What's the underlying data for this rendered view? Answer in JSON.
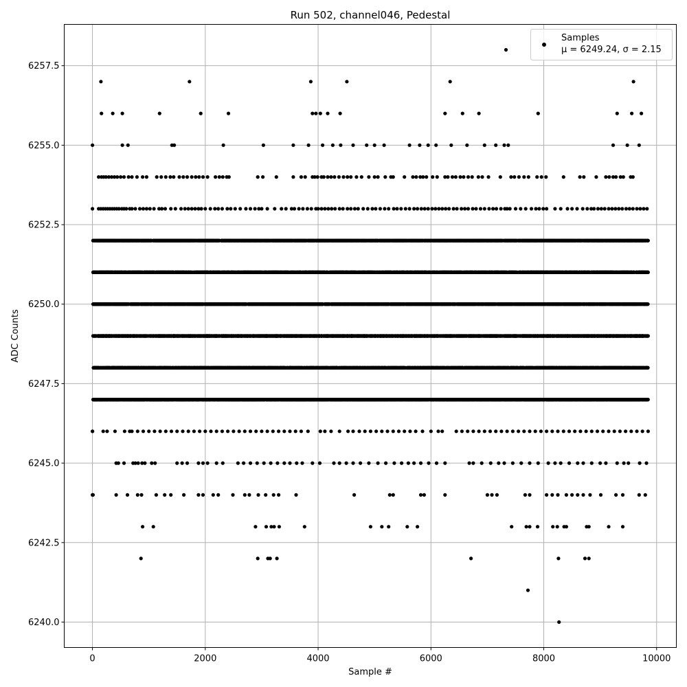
{
  "chart_data": {
    "type": "scatter",
    "title": "Run 502, channel046, Pedestal",
    "xlabel": "Sample #",
    "ylabel": "ADC Counts",
    "xlim": [
      -500,
      10350
    ],
    "ylim": [
      6239.2,
      6258.8
    ],
    "xticks": [
      0,
      2000,
      4000,
      6000,
      8000,
      10000
    ],
    "yticks": [
      6240.0,
      6242.5,
      6245.0,
      6247.5,
      6250.0,
      6252.5,
      6255.0,
      6257.5
    ],
    "xtick_labels": [
      "0",
      "2000",
      "4000",
      "6000",
      "8000",
      "10000"
    ],
    "ytick_labels": [
      "6240.0",
      "6242.5",
      "6245.0",
      "6247.5",
      "6250.0",
      "6252.5",
      "6255.0",
      "6257.5"
    ],
    "grid": true,
    "legend": {
      "placement": "top-right",
      "line1": "Samples",
      "line2": "μ = 6249.24, σ = 2.15"
    },
    "marker_color": "#000000",
    "series": [
      {
        "name": "Samples",
        "points": [
          [
            0,
            6244
          ],
          [
            0,
            6246
          ],
          [
            0,
            6255
          ],
          [
            150,
            6257
          ],
          [
            160,
            6256
          ],
          [
            360,
            6256
          ],
          [
            530,
            6256
          ],
          [
            530,
            6255
          ],
          [
            630,
            6255
          ],
          [
            1190,
            6256
          ],
          [
            1720,
            6257
          ],
          [
            1920,
            6256
          ],
          [
            2410,
            6256
          ],
          [
            2320,
            6255
          ],
          [
            3030,
            6255
          ],
          [
            1410,
            6255
          ],
          [
            1450,
            6255
          ],
          [
            3870,
            6257
          ],
          [
            3900,
            6256
          ],
          [
            3960,
            6256
          ],
          [
            4040,
            6256
          ],
          [
            4170,
            6256
          ],
          [
            4390,
            6256
          ],
          [
            4510,
            6257
          ],
          [
            3560,
            6255
          ],
          [
            3830,
            6255
          ],
          [
            4080,
            6255
          ],
          [
            4260,
            6255
          ],
          [
            4400,
            6255
          ],
          [
            4620,
            6255
          ],
          [
            4860,
            6255
          ],
          [
            5000,
            6255
          ],
          [
            5170,
            6255
          ],
          [
            5620,
            6255
          ],
          [
            5800,
            6255
          ],
          [
            5950,
            6255
          ],
          [
            6090,
            6255
          ],
          [
            6250,
            6256
          ],
          [
            6340,
            6257
          ],
          [
            6360,
            6255
          ],
          [
            6560,
            6256
          ],
          [
            6640,
            6255
          ],
          [
            6850,
            6256
          ],
          [
            6950,
            6255
          ],
          [
            7150,
            6255
          ],
          [
            7300,
            6255
          ],
          [
            7370,
            6255
          ],
          [
            7330,
            6258
          ],
          [
            7900,
            6256
          ],
          [
            9230,
            6255
          ],
          [
            9300,
            6256
          ],
          [
            9480,
            6255
          ],
          [
            9560,
            6256
          ],
          [
            9590,
            6257
          ],
          [
            9690,
            6255
          ],
          [
            9730,
            6256
          ],
          [
            860,
            6242
          ],
          [
            2930,
            6242
          ],
          [
            3110,
            6242
          ],
          [
            3150,
            6242
          ],
          [
            3270,
            6242
          ],
          [
            6710,
            6242
          ],
          [
            8260,
            6242
          ],
          [
            8730,
            6242
          ],
          [
            8800,
            6242
          ],
          [
            7720,
            6241
          ],
          [
            8270,
            6240
          ],
          [
            890,
            6243
          ],
          [
            1080,
            6243
          ],
          [
            2890,
            6243
          ],
          [
            3080,
            6243
          ],
          [
            3170,
            6243
          ],
          [
            3220,
            6243
          ],
          [
            3310,
            6243
          ],
          [
            3760,
            6243
          ],
          [
            4930,
            6243
          ],
          [
            5130,
            6243
          ],
          [
            5250,
            6243
          ],
          [
            5580,
            6243
          ],
          [
            5760,
            6243
          ],
          [
            7430,
            6243
          ],
          [
            7690,
            6243
          ],
          [
            7750,
            6243
          ],
          [
            7890,
            6243
          ],
          [
            8160,
            6243
          ],
          [
            8240,
            6243
          ],
          [
            8360,
            6243
          ],
          [
            8400,
            6243
          ],
          [
            8760,
            6243
          ],
          [
            8800,
            6243
          ],
          [
            9150,
            6243
          ],
          [
            9400,
            6243
          ],
          [
            10,
            6244
          ],
          [
            420,
            6244
          ],
          [
            620,
            6244
          ],
          [
            800,
            6244
          ],
          [
            870,
            6244
          ],
          [
            1130,
            6244
          ],
          [
            1280,
            6244
          ],
          [
            1390,
            6244
          ],
          [
            1620,
            6244
          ],
          [
            1880,
            6244
          ],
          [
            1960,
            6244
          ],
          [
            2140,
            6244
          ],
          [
            2230,
            6244
          ],
          [
            2490,
            6244
          ],
          [
            2700,
            6244
          ],
          [
            2780,
            6244
          ],
          [
            2940,
            6244
          ],
          [
            3070,
            6244
          ],
          [
            3210,
            6244
          ],
          [
            3300,
            6244
          ],
          [
            3610,
            6244
          ],
          [
            4640,
            6244
          ],
          [
            5270,
            6244
          ],
          [
            5330,
            6244
          ],
          [
            5820,
            6244
          ],
          [
            5880,
            6244
          ],
          [
            6250,
            6244
          ],
          [
            7000,
            6244
          ],
          [
            7080,
            6244
          ],
          [
            7170,
            6244
          ],
          [
            7670,
            6244
          ],
          [
            7750,
            6244
          ],
          [
            8050,
            6244
          ],
          [
            8150,
            6244
          ],
          [
            8250,
            6244
          ],
          [
            8400,
            6244
          ],
          [
            8500,
            6244
          ],
          [
            8600,
            6244
          ],
          [
            8700,
            6244
          ],
          [
            8820,
            6244
          ],
          [
            9010,
            6244
          ],
          [
            9280,
            6244
          ],
          [
            9400,
            6244
          ],
          [
            9690,
            6244
          ],
          [
            9800,
            6244
          ]
        ],
        "bands": [
          {
            "y": 6245,
            "x": [
              420,
              460,
              560,
              720,
              760,
              810,
              880,
              930,
              1050,
              1110,
              1500,
              1590,
              1680,
              1880,
              1960,
              2040,
              2200,
              2310,
              2580,
              2680,
              2800,
              2920,
              3040,
              3160,
              3280,
              3400,
              3500,
              3620,
              3720,
              3900,
              4030,
              4280,
              4380,
              4500,
              4620,
              4750,
              4900,
              5060,
              5200,
              5350,
              5480,
              5600,
              5700,
              5820,
              5960,
              6100,
              6250,
              6680,
              6750,
              6900,
              7060,
              7200,
              7300,
              7450,
              7600,
              7750,
              7900,
              8080,
              8200,
              8300,
              8450,
              8600,
              8700,
              8850,
              9000,
              9100,
              9300,
              9420,
              9500,
              9700,
              9820
            ]
          },
          {
            "y": 6246,
            "x": [
              0,
              190,
              260,
              400,
              570,
              660,
              700,
              800,
              900,
              1000,
              1100,
              1200,
              1300,
              1400,
              1500,
              1600,
              1700,
              1800,
              1900,
              2000,
              2100,
              2200,
              2300,
              2400,
              2500,
              2600,
              2700,
              2800,
              2900,
              3000,
              3100,
              3200,
              3300,
              3400,
              3500,
              3600,
              3700,
              3820,
              4040,
              4120,
              4230,
              4380,
              4530,
              4620,
              4730,
              4830,
              4930,
              5030,
              5130,
              5230,
              5330,
              5430,
              5530,
              5630,
              5730,
              5850,
              6000,
              6130,
              6200,
              6450,
              6550,
              6650,
              6750,
              6850,
              6950,
              7050,
              7150,
              7250,
              7350,
              7450,
              7550,
              7650,
              7750,
              7850,
              7950,
              8050,
              8150,
              8250,
              8350,
              8450,
              8550,
              8650,
              8750,
              8850,
              8950,
              9050,
              9150,
              9250,
              9350,
              9450,
              9550,
              9650,
              9750,
              9850
            ]
          },
          {
            "y": 6247,
            "x": 3000
          },
          {
            "y": 6248,
            "x": 3000
          },
          {
            "y": 6249,
            "x": 3000
          },
          {
            "y": 6250,
            "x": 3000
          },
          {
            "y": 6251,
            "x": 3000
          },
          {
            "y": 6252,
            "x": 3000
          },
          {
            "y": 6253,
            "x": [
              0,
              110,
              150,
              190,
              230,
              270,
              310,
              350,
              390,
              430,
              470,
              520,
              560,
              600,
              660,
              700,
              760,
              840,
              900,
              960,
              1020,
              1090,
              1180,
              1230,
              1290,
              1390,
              1470,
              1570,
              1640,
              1700,
              1760,
              1820,
              1880,
              1930,
              2000,
              2090,
              2170,
              2230,
              2300,
              2390,
              2450,
              2530,
              2620,
              2720,
              2800,
              2880,
              2950,
              3000,
              3100,
              3230,
              3350,
              3430,
              3530,
              3580,
              3660,
              3730,
              3810,
              3880,
              3960,
              4000,
              4060,
              4120,
              4180,
              4240,
              4300,
              4380,
              4440,
              4520,
              4580,
              4650,
              4710,
              4800,
              4880,
              4960,
              5020,
              5100,
              5180,
              5250,
              5340,
              5400,
              5470,
              5550,
              5620,
              5700,
              5760,
              5830,
              5890,
              5950,
              6020,
              6080,
              6140,
              6200,
              6260,
              6320,
              6400,
              6460,
              6540,
              6600,
              6660,
              6740,
              6800,
              6880,
              6950,
              7030,
              7100,
              7160,
              7240,
              7310,
              7350,
              7400,
              7500,
              7590,
              7680,
              7780,
              7860,
              7920,
              7990,
              8050,
              8200,
              8300,
              8420,
              8500,
              8590,
              8690,
              8770,
              8840,
              8890,
              8960,
              9020,
              9080,
              9150,
              9210,
              9270,
              9330,
              9390,
              9460,
              9520,
              9580,
              9650,
              9710,
              9770,
              9830
            ]
          },
          {
            "y": 6254,
            "x": [
              110,
              160,
              200,
              240,
              290,
              340,
              390,
              440,
              500,
              560,
              640,
              700,
              790,
              890,
              960,
              1140,
              1220,
              1300,
              1380,
              1440,
              1540,
              1610,
              1680,
              1760,
              1830,
              1890,
              1960,
              2040,
              2180,
              2250,
              2310,
              2380,
              2420,
              2930,
              3020,
              3260,
              3560,
              3700,
              3770,
              3900,
              3940,
              3990,
              4060,
              4100,
              4170,
              4230,
              4290,
              4370,
              4450,
              4520,
              4580,
              4680,
              4770,
              4900,
              5000,
              5060,
              5190,
              5290,
              5330,
              5530,
              5680,
              5740,
              5810,
              5860,
              5920,
              6030,
              6110,
              6250,
              6300,
              6380,
              6440,
              6520,
              6580,
              6660,
              6730,
              6840,
              6910,
              7020,
              7230,
              7420,
              7480,
              7560,
              7650,
              7730,
              7880,
              7960,
              8040,
              8350,
              8640,
              8710,
              8930,
              9100,
              9160,
              9230,
              9280,
              9360,
              9410,
              9540,
              9580
            ]
          }
        ]
      }
    ]
  }
}
